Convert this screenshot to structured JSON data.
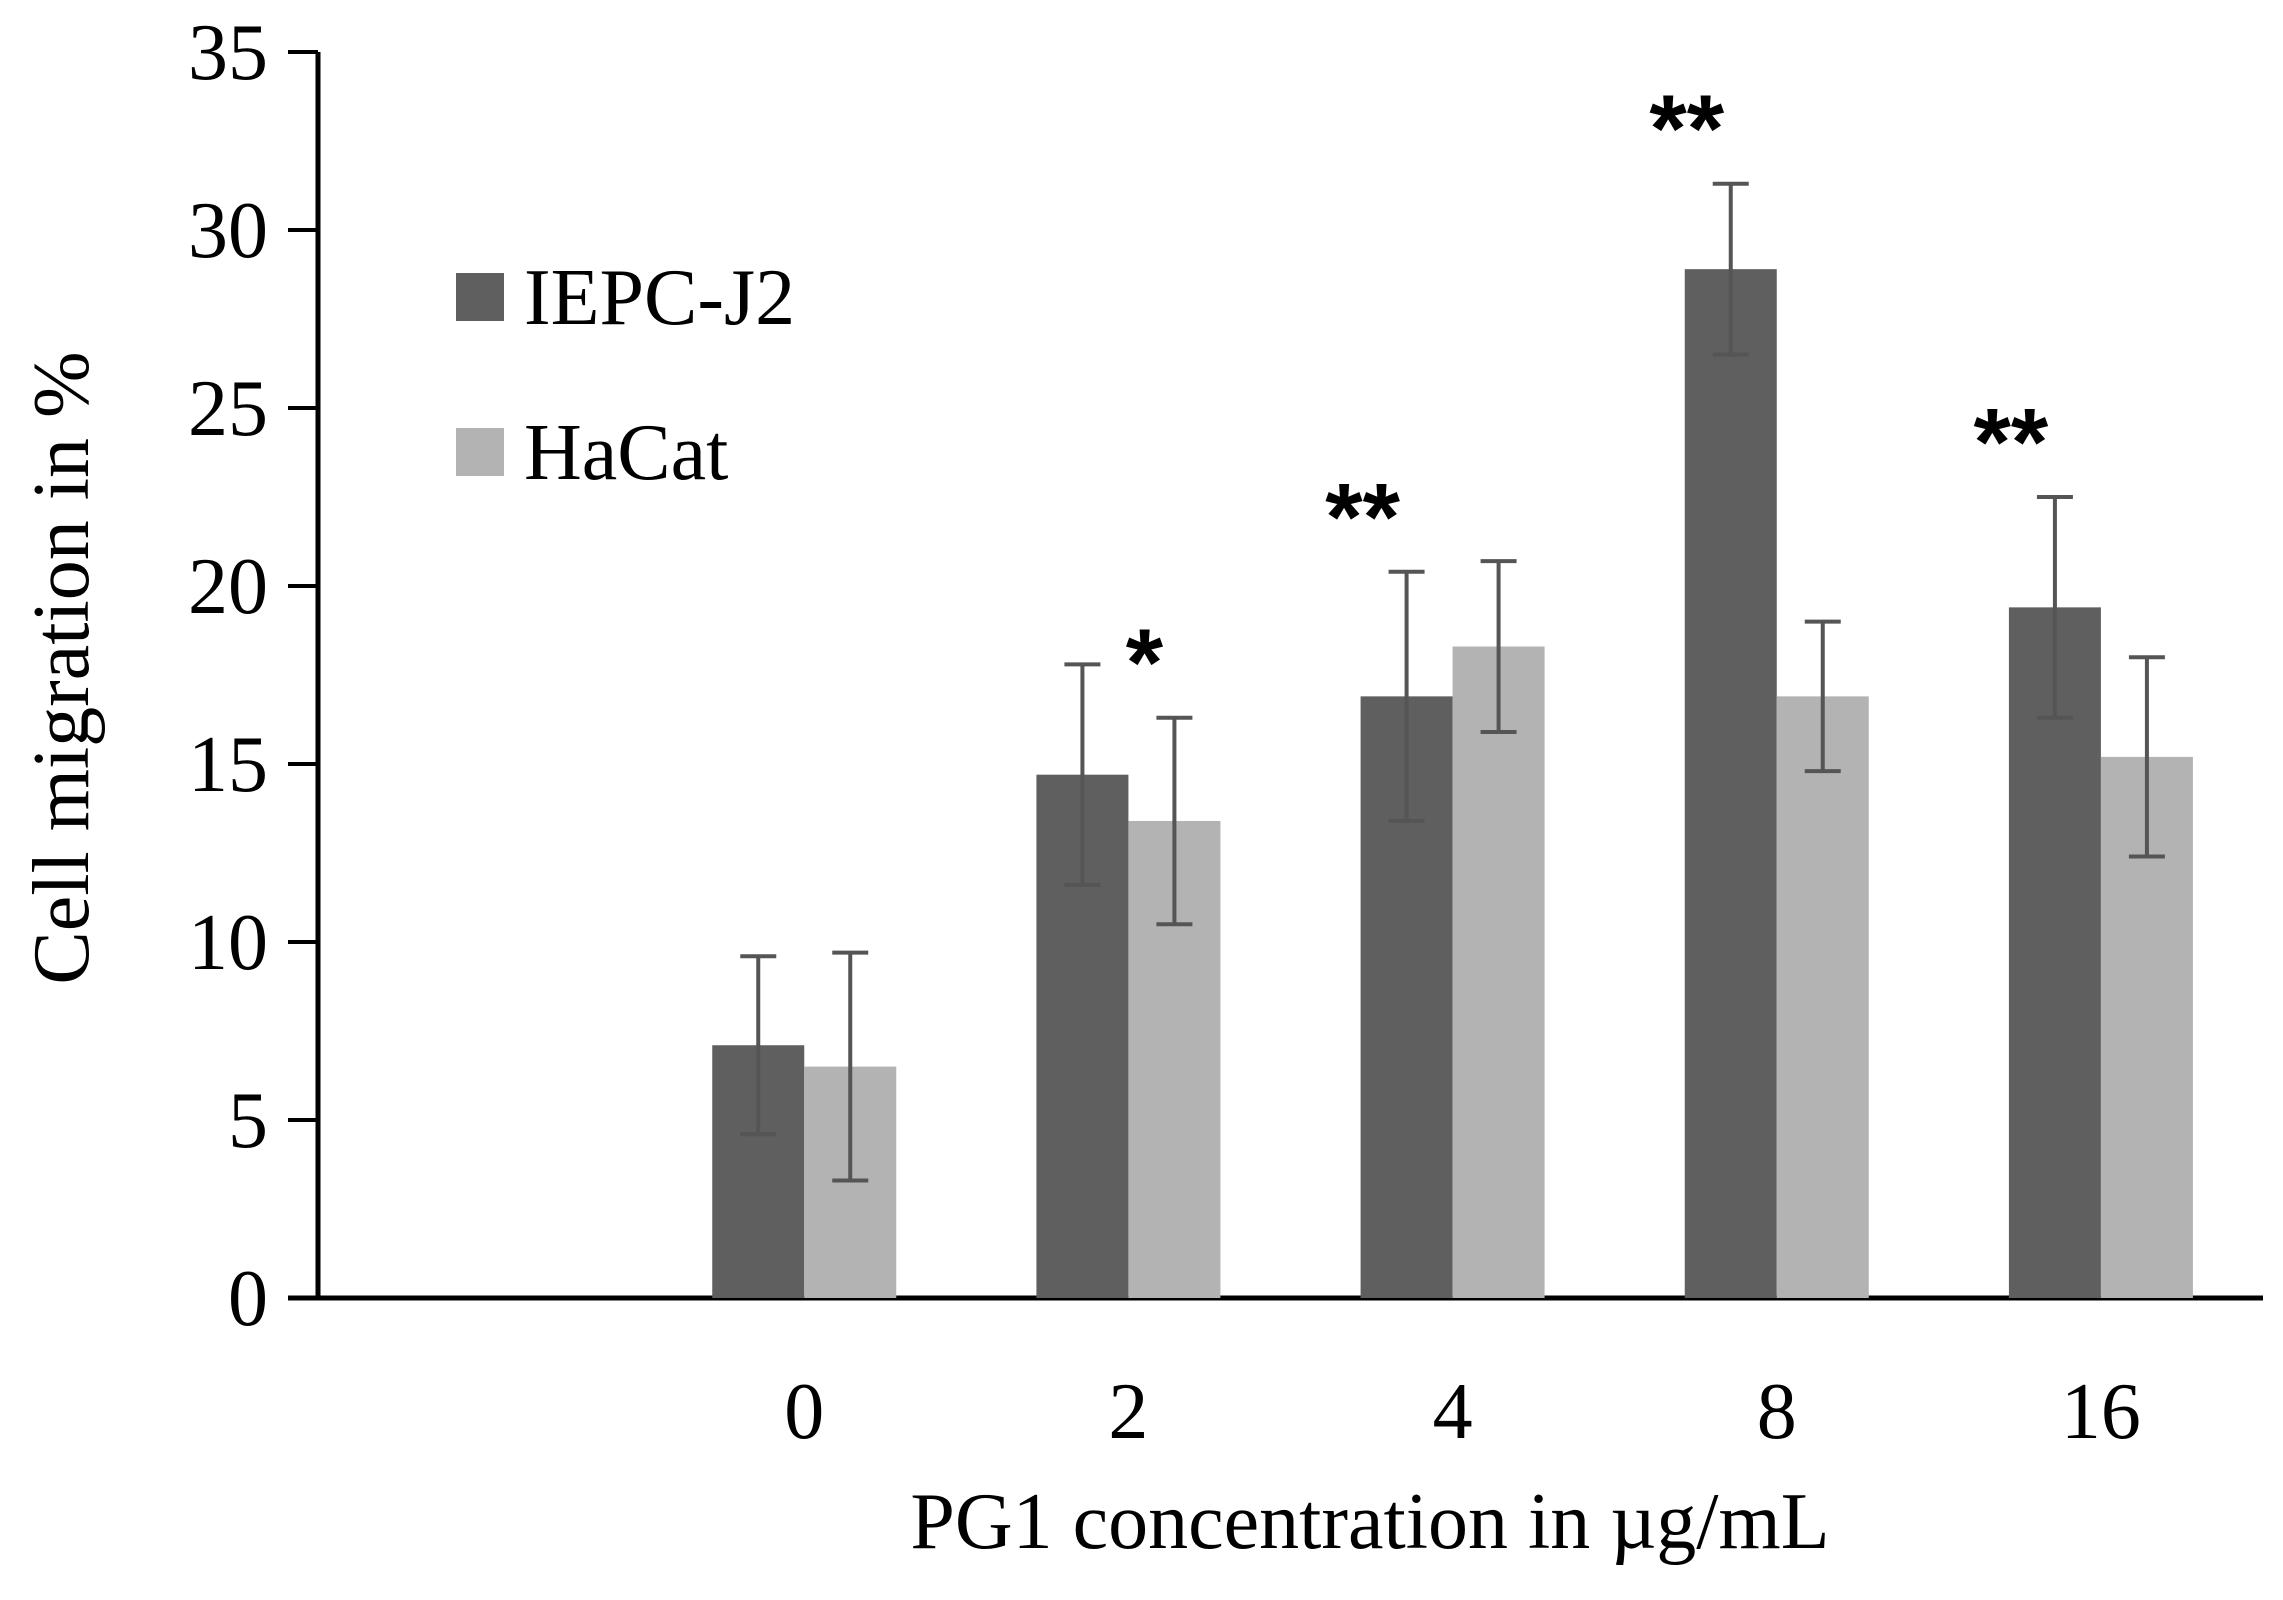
{
  "chart_data": {
    "type": "bar",
    "categories": [
      "",
      "0",
      "2",
      "4",
      "8",
      "16"
    ],
    "series": [
      {
        "name": "IEPC-J2",
        "color": "#5f5f5f",
        "values": [
          null,
          7.1,
          14.7,
          16.9,
          28.9,
          19.4
        ],
        "errors": [
          null,
          2.5,
          3.1,
          3.5,
          2.4,
          3.1
        ]
      },
      {
        "name": "HaCat",
        "color": "#b3b3b3",
        "values": [
          null,
          6.5,
          13.4,
          18.3,
          16.9,
          15.2
        ],
        "errors": [
          null,
          3.2,
          2.9,
          2.4,
          2.1,
          2.8
        ]
      }
    ],
    "significance": [
      "",
      "",
      "*",
      "**",
      "**",
      "**"
    ],
    "xlabel": "PG1 concentration in µg/mL",
    "ylabel": "Cell migration in %",
    "ylim": [
      0,
      35
    ],
    "yticks": [
      0,
      5,
      10,
      15,
      20,
      25,
      30,
      35
    ],
    "error_bar_color": "#555555",
    "grid": false,
    "legend_position": "top-left"
  }
}
